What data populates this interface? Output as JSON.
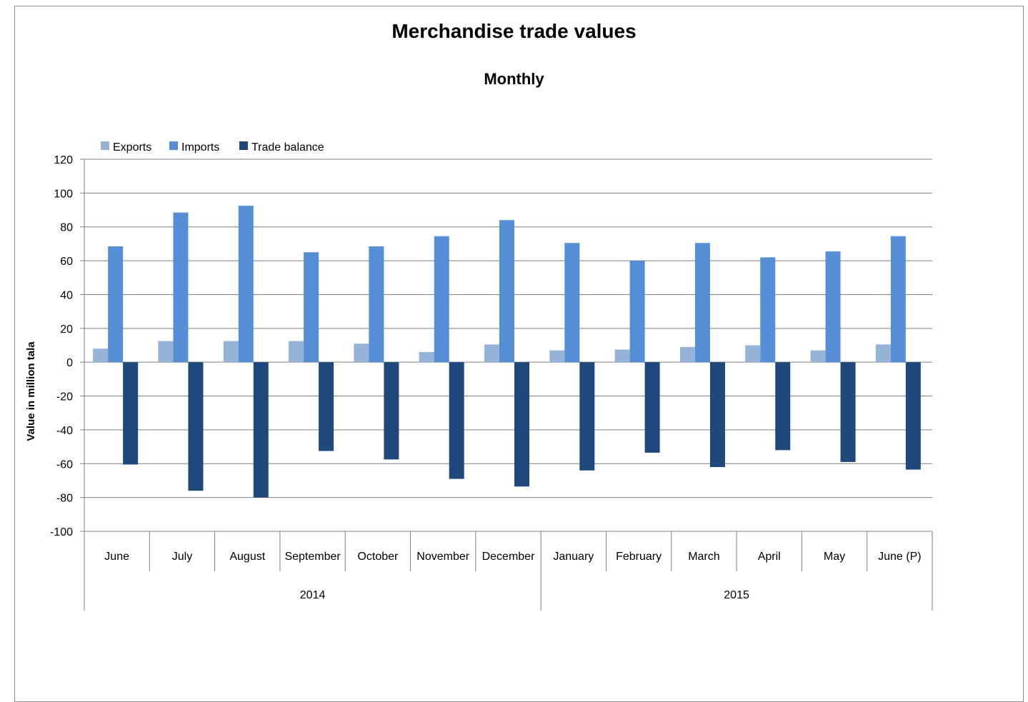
{
  "colors": {
    "exports": "#95b3d7",
    "imports": "#558ed5",
    "trade_balance": "#1f497d",
    "grid": "#7f7f7f"
  },
  "chart_data": {
    "type": "bar",
    "title": "Merchandise trade values",
    "subtitle": "Monthly",
    "xlabel": "",
    "ylabel": "Value in million tala",
    "ylim": [
      -100,
      120
    ],
    "yticks": [
      120,
      100,
      80,
      60,
      40,
      20,
      0,
      -20,
      -40,
      -60,
      -80,
      -100
    ],
    "grid": true,
    "legend_position": "top-left",
    "categories": [
      "June",
      "July",
      "August",
      "September",
      "October",
      "November",
      "December",
      "January",
      "February",
      "March",
      "April",
      "May",
      "June (P)"
    ],
    "groups": [
      {
        "label": "2014",
        "span": 7
      },
      {
        "label": "2015",
        "span": 6
      }
    ],
    "series": [
      {
        "name": "Exports",
        "values": [
          8,
          12.5,
          12.5,
          12.5,
          11,
          6,
          10.5,
          7,
          7.5,
          9,
          10,
          7,
          10.5
        ]
      },
      {
        "name": "Imports",
        "values": [
          68.5,
          88.5,
          92.5,
          65,
          68.5,
          74.5,
          84,
          70.5,
          60,
          70.5,
          62,
          65.5,
          74.5
        ]
      },
      {
        "name": "Trade balance",
        "values": [
          -60.5,
          -76,
          -80,
          -52.5,
          -57.5,
          -69,
          -73.5,
          -64,
          -53.5,
          -62,
          -52,
          -59,
          -63.5
        ]
      }
    ]
  }
}
